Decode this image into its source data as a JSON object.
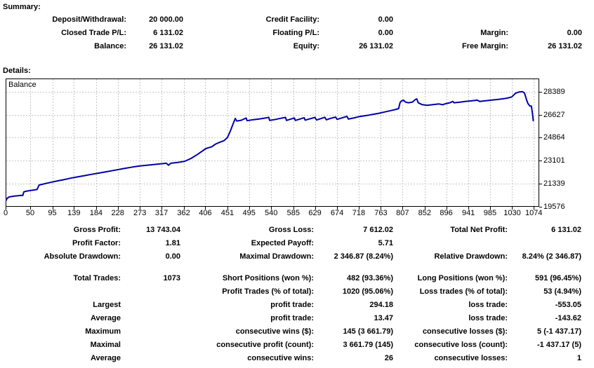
{
  "summary": {
    "heading": "Summary:",
    "rows": [
      {
        "l1": "Deposit/Withdrawal:",
        "v1": "20 000.00",
        "l2": "Credit Facility:",
        "v2": "0.00",
        "l3": "",
        "v3": ""
      },
      {
        "l1": "Closed Trade P/L:",
        "v1": "6 131.02",
        "l2": "Floating P/L:",
        "v2": "0.00",
        "l3": "Margin:",
        "v3": "0.00"
      },
      {
        "l1": "Balance:",
        "v1": "26 131.02",
        "l2": "Equity:",
        "v2": "26 131.02",
        "l3": "Free Margin:",
        "v3": "26 131.02"
      }
    ]
  },
  "details": {
    "heading": "Details:",
    "block1": [
      {
        "l1": "Gross Profit:",
        "v1": "13 743.04",
        "l2": "Gross Loss:",
        "v2": "7 612.02",
        "l3": "Total Net Profit:",
        "v3": "6 131.02"
      },
      {
        "l1": "Profit Factor:",
        "v1": "1.81",
        "l2": "Expected Payoff:",
        "v2": "5.71",
        "l3": "",
        "v3": ""
      },
      {
        "l1": "Absolute Drawdown:",
        "v1": "0.00",
        "l2": "Maximal Drawdown:",
        "v2": "2 346.87 (8.24%)",
        "l3": "Relative Drawdown:",
        "v3": "8.24% (2 346.87)"
      }
    ],
    "block2": [
      {
        "l1": "Total Trades:",
        "v1": "1073",
        "l2": "Short Positions (won %):",
        "v2": "482 (93.36%)",
        "l3": "Long Positions (won %):",
        "v3": "591 (96.45%)"
      },
      {
        "l1": "",
        "v1": "",
        "l2": "Profit Trades (% of total):",
        "v2": "1020 (95.06%)",
        "l3": "Loss trades (% of total):",
        "v3": "53 (4.94%)"
      },
      {
        "l1": "Largest",
        "v1": "",
        "l2": "profit trade:",
        "v2": "294.18",
        "l3": "loss trade:",
        "v3": "-553.05"
      },
      {
        "l1": "Average",
        "v1": "",
        "l2": "profit trade:",
        "v2": "13.47",
        "l3": "loss trade:",
        "v3": "-143.62"
      },
      {
        "l1": "Maximum",
        "v1": "",
        "l2": "consecutive wins ($):",
        "v2": "145 (3 661.79)",
        "l3": "consecutive losses ($):",
        "v3": "5 (-1 437.17)"
      },
      {
        "l1": "Maximal",
        "v1": "",
        "l2": "consecutive profit (count):",
        "v2": "3 661.79 (145)",
        "l3": "consecutive loss (count):",
        "v3": "-1 437.17 (5)"
      },
      {
        "l1": "Average",
        "v1": "",
        "l2": "consecutive wins:",
        "v2": "26",
        "l3": "consecutive losses:",
        "v3": "1"
      }
    ]
  },
  "chart_data": {
    "type": "line",
    "title": "Balance",
    "legend": [
      "Balance"
    ],
    "xlabel": "",
    "ylabel": "",
    "grid": true,
    "line_color": "#0000A8",
    "grid_color": "#c6c6c6",
    "x_ticks": [
      0,
      50,
      95,
      139,
      184,
      228,
      273,
      317,
      362,
      406,
      451,
      495,
      540,
      585,
      629,
      674,
      718,
      763,
      807,
      852,
      896,
      941,
      985,
      1030,
      1074
    ],
    "y_ticks": [
      28389,
      26627,
      24864,
      23101,
      21339,
      19576
    ],
    "x_range": [
      0,
      1085
    ],
    "y_range": [
      19576,
      29400
    ],
    "points": [
      [
        0,
        20000
      ],
      [
        3,
        20220
      ],
      [
        7,
        20330
      ],
      [
        12,
        20360
      ],
      [
        18,
        20390
      ],
      [
        25,
        20420
      ],
      [
        31,
        20450
      ],
      [
        35,
        20440
      ],
      [
        37,
        20720
      ],
      [
        43,
        20780
      ],
      [
        50,
        20820
      ],
      [
        57,
        20860
      ],
      [
        64,
        20900
      ],
      [
        68,
        21240
      ],
      [
        75,
        21300
      ],
      [
        85,
        21390
      ],
      [
        95,
        21470
      ],
      [
        106,
        21560
      ],
      [
        118,
        21650
      ],
      [
        131,
        21760
      ],
      [
        145,
        21860
      ],
      [
        160,
        21960
      ],
      [
        175,
        22060
      ],
      [
        190,
        22160
      ],
      [
        205,
        22260
      ],
      [
        222,
        22380
      ],
      [
        240,
        22500
      ],
      [
        258,
        22620
      ],
      [
        273,
        22700
      ],
      [
        287,
        22760
      ],
      [
        301,
        22810
      ],
      [
        315,
        22860
      ],
      [
        327,
        22910
      ],
      [
        331,
        22760
      ],
      [
        336,
        22910
      ],
      [
        350,
        22970
      ],
      [
        364,
        23060
      ],
      [
        377,
        23280
      ],
      [
        389,
        23560
      ],
      [
        399,
        23820
      ],
      [
        407,
        24030
      ],
      [
        413,
        24100
      ],
      [
        419,
        24170
      ],
      [
        427,
        24380
      ],
      [
        435,
        24510
      ],
      [
        444,
        24640
      ],
      [
        451,
        24880
      ],
      [
        457,
        25380
      ],
      [
        462,
        25880
      ],
      [
        467,
        26340
      ],
      [
        470,
        26140
      ],
      [
        479,
        26200
      ],
      [
        489,
        26370
      ],
      [
        491,
        26170
      ],
      [
        504,
        26250
      ],
      [
        517,
        26310
      ],
      [
        529,
        26380
      ],
      [
        535,
        26430
      ],
      [
        537,
        26190
      ],
      [
        549,
        26270
      ],
      [
        559,
        26350
      ],
      [
        569,
        26420
      ],
      [
        571,
        26190
      ],
      [
        579,
        26280
      ],
      [
        587,
        26380
      ],
      [
        589,
        26190
      ],
      [
        599,
        26300
      ],
      [
        607,
        26400
      ],
      [
        609,
        26210
      ],
      [
        619,
        26320
      ],
      [
        629,
        26420
      ],
      [
        632,
        26220
      ],
      [
        641,
        26330
      ],
      [
        649,
        26430
      ],
      [
        652,
        26240
      ],
      [
        661,
        26350
      ],
      [
        671,
        26450
      ],
      [
        674,
        26270
      ],
      [
        685,
        26400
      ],
      [
        694,
        26500
      ],
      [
        697,
        26290
      ],
      [
        709,
        26390
      ],
      [
        719,
        26480
      ],
      [
        729,
        26540
      ],
      [
        739,
        26600
      ],
      [
        749,
        26670
      ],
      [
        759,
        26740
      ],
      [
        771,
        26840
      ],
      [
        783,
        26940
      ],
      [
        794,
        27040
      ],
      [
        799,
        27090
      ],
      [
        802,
        27560
      ],
      [
        805,
        27690
      ],
      [
        809,
        27740
      ],
      [
        813,
        27590
      ],
      [
        819,
        27540
      ],
      [
        827,
        27590
      ],
      [
        833,
        27790
      ],
      [
        836,
        27840
      ],
      [
        839,
        27540
      ],
      [
        847,
        27400
      ],
      [
        857,
        27350
      ],
      [
        869,
        27400
      ],
      [
        881,
        27450
      ],
      [
        889,
        27390
      ],
      [
        894,
        27470
      ],
      [
        904,
        27550
      ],
      [
        909,
        27650
      ],
      [
        912,
        27540
      ],
      [
        924,
        27590
      ],
      [
        934,
        27640
      ],
      [
        947,
        27690
      ],
      [
        959,
        27740
      ],
      [
        964,
        27640
      ],
      [
        974,
        27690
      ],
      [
        987,
        27740
      ],
      [
        999,
        27790
      ],
      [
        1009,
        27840
      ],
      [
        1019,
        27890
      ],
      [
        1029,
        27990
      ],
      [
        1037,
        28280
      ],
      [
        1044,
        28370
      ],
      [
        1051,
        28389
      ],
      [
        1055,
        28290
      ],
      [
        1059,
        27790
      ],
      [
        1062,
        27490
      ],
      [
        1066,
        27290
      ],
      [
        1069,
        27290
      ],
      [
        1071,
        26790
      ],
      [
        1073,
        26131
      ]
    ]
  }
}
